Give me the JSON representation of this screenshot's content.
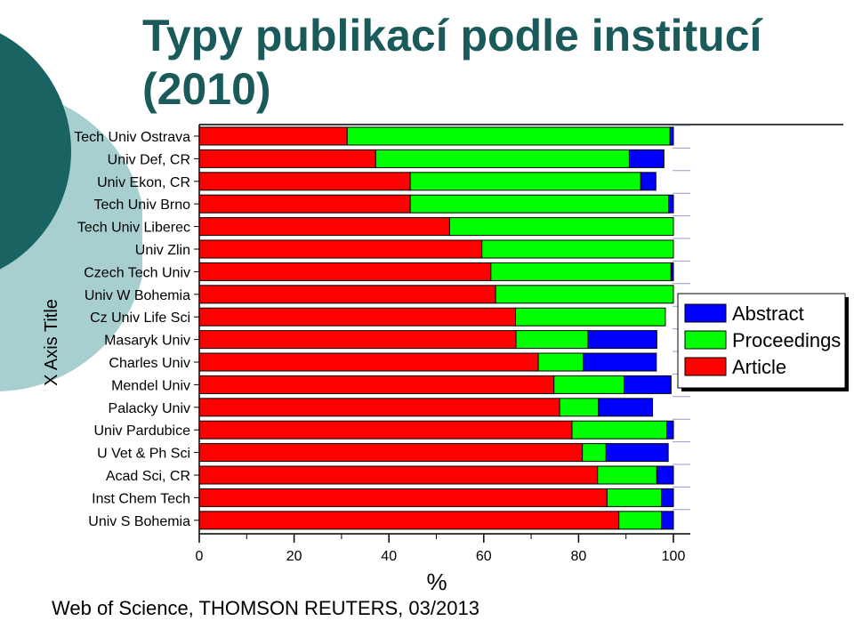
{
  "header": {
    "title": "Typy publikací podle institucí (2010)"
  },
  "footer": {
    "source": "Web of Science, THOMSON REUTERS, 03/2013"
  },
  "chart_data": {
    "type": "bar",
    "orientation": "horizontal",
    "stacked": true,
    "title": "Typy publikací podle institucí (2010)",
    "xlabel": "%",
    "ylabel": "X Axis Title",
    "xlim": [
      0,
      100
    ],
    "xticks": [
      "0",
      "20",
      "40",
      "60",
      "80",
      "100"
    ],
    "legend_position": "right",
    "categories": [
      "Tech Univ Ostrava",
      "Univ Def, CR",
      "Univ Ekon, CR",
      "Tech Univ Brno",
      "Tech Univ Liberec",
      "Univ Zlin",
      "Czech Tech Univ",
      "Univ W Bohemia",
      "Cz Univ Life Sci",
      "Masaryk Univ",
      "Charles Univ",
      "Mendel Univ",
      "Palacky Univ",
      "Univ Pardubice",
      "U Vet & Ph Sci",
      "Acad Sci, CR",
      "Inst Chem Tech",
      "Univ S Bohemia"
    ],
    "series": [
      {
        "name": "Article",
        "color": "#ff0000",
        "values": [
          31.2,
          37.2,
          44.5,
          44.5,
          52.8,
          59.6,
          61.5,
          62.5,
          66.7,
          66.8,
          71.5,
          74.8,
          76.0,
          78.6,
          80.8,
          84.0,
          86.0,
          88.5
        ]
      },
      {
        "name": "Proceedings",
        "color": "#00ff00",
        "values": [
          68.1,
          53.5,
          48.6,
          54.5,
          47.2,
          40.4,
          38.0,
          37.5,
          31.6,
          15.2,
          9.5,
          14.8,
          8.2,
          20.0,
          5.0,
          12.5,
          11.5,
          9.0
        ]
      },
      {
        "name": "Abstract",
        "color": "#0000ff",
        "values": [
          0.7,
          7.3,
          3.2,
          1.0,
          0.0,
          0.0,
          0.5,
          0.0,
          0.0,
          14.5,
          15.4,
          9.9,
          11.4,
          1.4,
          13.1,
          3.5,
          2.5,
          2.5
        ]
      }
    ],
    "legend_order": [
      "Abstract",
      "Proceedings",
      "Article"
    ]
  }
}
